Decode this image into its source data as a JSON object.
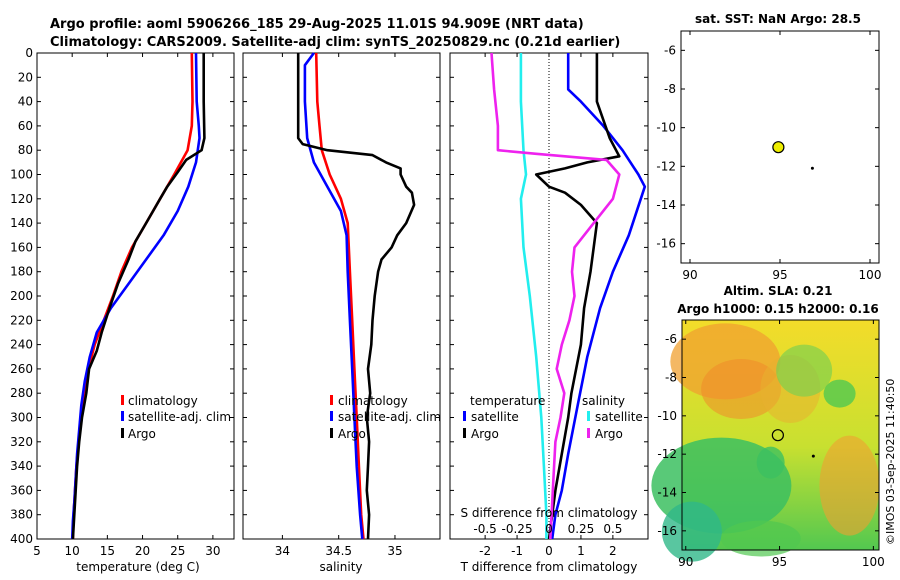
{
  "header": {
    "title_line1": "Argo profile: aoml 5906266_185 29-Aug-2025 11.01S 94.909E (NRT data)",
    "title_line2": "Climatology: CARS2009. Satellite-adj clim: synTS_20250829.nc (0.21d earlier)"
  },
  "footer": {
    "stamp": "©IMOS 03-Sep-2025 11:40:50"
  },
  "colors": {
    "clim": "#ff0000",
    "sat": "#0000ff",
    "argo": "#000000",
    "cyan": "#22eeee",
    "magenta": "#ee22ee",
    "point": "#eeee00"
  },
  "chart_data": [
    {
      "name": "temperature",
      "type": "line",
      "xlabel": "temperature (deg C)",
      "xlim": [
        5,
        33
      ],
      "xticks": [
        "5",
        "10",
        "15",
        "20",
        "25",
        "30"
      ],
      "ylim": [
        0,
        400
      ],
      "yticks": [
        "0",
        "20",
        "40",
        "60",
        "80",
        "100",
        "120",
        "140",
        "160",
        "180",
        "200",
        "220",
        "240",
        "260",
        "280",
        "300",
        "320",
        "340",
        "360",
        "380",
        "400"
      ],
      "series": [
        {
          "name": "climatology",
          "color": "#ff0000",
          "points": [
            [
              27.0,
              0
            ],
            [
              27.1,
              40
            ],
            [
              27.0,
              60
            ],
            [
              26.4,
              80
            ],
            [
              24.5,
              100
            ],
            [
              22.5,
              120
            ],
            [
              20.5,
              140
            ],
            [
              18.5,
              160
            ],
            [
              17.0,
              180
            ],
            [
              15.8,
              200
            ],
            [
              14.5,
              220
            ],
            [
              13.2,
              240
            ],
            [
              12.3,
              260
            ],
            [
              11.7,
              280
            ],
            [
              11.2,
              300
            ],
            [
              10.9,
              320
            ],
            [
              10.6,
              340
            ],
            [
              10.4,
              360
            ],
            [
              10.2,
              380
            ],
            [
              10.1,
              400
            ]
          ]
        },
        {
          "name": "satellite-adj. clim",
          "color": "#0000ff",
          "points": [
            [
              27.6,
              0
            ],
            [
              27.7,
              40
            ],
            [
              28.0,
              60
            ],
            [
              28.1,
              70
            ],
            [
              27.6,
              90
            ],
            [
              26.5,
              110
            ],
            [
              25.0,
              130
            ],
            [
              23.0,
              150
            ],
            [
              20.5,
              170
            ],
            [
              18.0,
              190
            ],
            [
              15.5,
              210
            ],
            [
              13.5,
              230
            ],
            [
              12.5,
              250
            ],
            [
              11.8,
              270
            ],
            [
              11.3,
              290
            ],
            [
              11.0,
              310
            ],
            [
              10.7,
              330
            ],
            [
              10.5,
              350
            ],
            [
              10.3,
              370
            ],
            [
              10.1,
              385
            ],
            [
              10.0,
              400
            ]
          ]
        },
        {
          "name": "Argo",
          "color": "#000000",
          "points": [
            [
              28.7,
              0
            ],
            [
              28.7,
              40
            ],
            [
              28.8,
              70
            ],
            [
              28.4,
              80
            ],
            [
              26.2,
              88
            ],
            [
              25.0,
              98
            ],
            [
              23.5,
              110
            ],
            [
              22.5,
              120
            ],
            [
              21.5,
              130
            ],
            [
              20.5,
              140
            ],
            [
              19.0,
              155
            ],
            [
              18.0,
              170
            ],
            [
              16.5,
              190
            ],
            [
              15.3,
              210
            ],
            [
              14.2,
              230
            ],
            [
              13.5,
              245
            ],
            [
              12.4,
              260
            ],
            [
              12.0,
              280
            ],
            [
              11.4,
              300
            ],
            [
              11.0,
              320
            ],
            [
              10.7,
              340
            ],
            [
              10.5,
              360
            ],
            [
              10.3,
              380
            ],
            [
              10.1,
              400
            ]
          ]
        }
      ],
      "legend": [
        "climatology",
        "satellite-adj. clim",
        "Argo"
      ]
    },
    {
      "name": "salinity",
      "type": "line",
      "xlabel": "salinity",
      "xlim": [
        33.65,
        35.4
      ],
      "xticks": [
        "34",
        "34.5",
        "35"
      ],
      "ylim": [
        0,
        400
      ],
      "series": [
        {
          "name": "climatology",
          "color": "#ff0000",
          "points": [
            [
              34.3,
              0
            ],
            [
              34.31,
              40
            ],
            [
              34.33,
              60
            ],
            [
              34.35,
              80
            ],
            [
              34.42,
              100
            ],
            [
              34.52,
              120
            ],
            [
              34.58,
              140
            ],
            [
              34.6,
              180
            ],
            [
              34.62,
              220
            ],
            [
              34.64,
              260
            ],
            [
              34.66,
              300
            ],
            [
              34.68,
              340
            ],
            [
              34.7,
              380
            ],
            [
              34.72,
              400
            ]
          ]
        },
        {
          "name": "satellite-adj. clim",
          "color": "#0000ff",
          "points": [
            [
              34.28,
              0
            ],
            [
              34.2,
              10
            ],
            [
              34.2,
              40
            ],
            [
              34.22,
              70
            ],
            [
              34.28,
              90
            ],
            [
              34.4,
              110
            ],
            [
              34.52,
              130
            ],
            [
              34.57,
              150
            ],
            [
              34.58,
              180
            ],
            [
              34.6,
              220
            ],
            [
              34.62,
              260
            ],
            [
              34.64,
              300
            ],
            [
              34.66,
              340
            ],
            [
              34.69,
              380
            ],
            [
              34.71,
              400
            ]
          ]
        },
        {
          "name": "Argo",
          "color": "#000000",
          "points": [
            [
              34.14,
              0
            ],
            [
              34.14,
              70
            ],
            [
              34.18,
              75
            ],
            [
              34.4,
              80
            ],
            [
              34.8,
              84
            ],
            [
              34.92,
              90
            ],
            [
              35.05,
              95
            ],
            [
              35.05,
              100
            ],
            [
              35.1,
              110
            ],
            [
              35.15,
              115
            ],
            [
              35.17,
              125
            ],
            [
              35.1,
              140
            ],
            [
              35.02,
              150
            ],
            [
              34.97,
              160
            ],
            [
              34.88,
              170
            ],
            [
              34.85,
              180
            ],
            [
              34.82,
              200
            ],
            [
              34.8,
              220
            ],
            [
              34.79,
              240
            ],
            [
              34.76,
              260
            ],
            [
              34.78,
              280
            ],
            [
              34.75,
              300
            ],
            [
              34.77,
              320
            ],
            [
              34.76,
              340
            ],
            [
              34.75,
              360
            ],
            [
              34.77,
              380
            ],
            [
              34.76,
              400
            ]
          ]
        }
      ],
      "legend": [
        "climatology",
        "satellite-adj. clim",
        "Argo"
      ]
    },
    {
      "name": "differences",
      "type": "line",
      "xlabel": "T difference from climatology",
      "top_label": "S difference from climatology",
      "xlim": [
        -3.1,
        3.1
      ],
      "xticks": [
        "-2",
        "-1",
        "0",
        "1",
        "2"
      ],
      "top_ticks": [
        "-0.5",
        "-0.25",
        "0",
        "0.25",
        "0.5"
      ],
      "ylim": [
        0,
        400
      ],
      "series": [
        {
          "name": "temperature satellite",
          "color": "#0000ff",
          "points": [
            [
              0.6,
              0
            ],
            [
              0.6,
              30
            ],
            [
              1.0,
              40
            ],
            [
              1.7,
              60
            ],
            [
              2.3,
              80
            ],
            [
              2.8,
              100
            ],
            [
              3.0,
              110
            ],
            [
              2.5,
              150
            ],
            [
              2.0,
              180
            ],
            [
              1.6,
              210
            ],
            [
              1.2,
              250
            ],
            [
              0.9,
              290
            ],
            [
              0.6,
              330
            ],
            [
              0.4,
              360
            ],
            [
              0.2,
              380
            ],
            [
              0.1,
              400
            ]
          ]
        },
        {
          "name": "temperature Argo",
          "color": "#000000",
          "points": [
            [
              1.5,
              0
            ],
            [
              1.5,
              40
            ],
            [
              1.9,
              70
            ],
            [
              2.2,
              85
            ],
            [
              1.2,
              90
            ],
            [
              0.5,
              95
            ],
            [
              -0.4,
              100
            ],
            [
              0.0,
              110
            ],
            [
              0.5,
              115
            ],
            [
              1.0,
              125
            ],
            [
              1.5,
              140
            ],
            [
              1.4,
              160
            ],
            [
              1.3,
              180
            ],
            [
              1.1,
              210
            ],
            [
              1.0,
              240
            ],
            [
              0.7,
              280
            ],
            [
              0.6,
              300
            ],
            [
              0.4,
              330
            ],
            [
              0.2,
              360
            ],
            [
              0.1,
              380
            ],
            [
              0.0,
              400
            ]
          ]
        },
        {
          "name": "salinity satellite",
          "color": "#22eeee",
          "points": [
            [
              -0.22,
              0
            ],
            [
              -0.22,
              40
            ],
            [
              -0.2,
              80
            ],
            [
              -0.18,
              100
            ],
            [
              -0.22,
              120
            ],
            [
              -0.2,
              160
            ],
            [
              -0.15,
              200
            ],
            [
              -0.1,
              250
            ],
            [
              -0.06,
              300
            ],
            [
              -0.04,
              340
            ],
            [
              -0.02,
              380
            ],
            [
              -0.02,
              400
            ]
          ]
        },
        {
          "name": "salinity Argo",
          "color": "#ee22ee",
          "points": [
            [
              -0.45,
              0
            ],
            [
              -0.43,
              30
            ],
            [
              -0.4,
              60
            ],
            [
              -0.4,
              80
            ],
            [
              -0.1,
              83
            ],
            [
              0.45,
              88
            ],
            [
              0.55,
              100
            ],
            [
              0.5,
              120
            ],
            [
              0.35,
              140
            ],
            [
              0.2,
              160
            ],
            [
              0.18,
              180
            ],
            [
              0.2,
              200
            ],
            [
              0.16,
              220
            ],
            [
              0.1,
              240
            ],
            [
              0.06,
              260
            ],
            [
              0.12,
              280
            ],
            [
              0.09,
              300
            ],
            [
              0.05,
              320
            ],
            [
              0.04,
              340
            ],
            [
              0.03,
              360
            ],
            [
              0.02,
              380
            ],
            [
              0.01,
              400
            ]
          ]
        }
      ],
      "legend": {
        "temperature_title": "temperature",
        "salinity_title": "salinity",
        "satellite": "satellite",
        "argo": "Argo"
      }
    },
    {
      "name": "sst_map",
      "type": "scatter",
      "title": "sat. SST: NaN Argo: 28.5",
      "xlim": [
        89.5,
        100.5
      ],
      "ylim": [
        -17,
        -5
      ],
      "xticks": [
        "90",
        "95",
        "100"
      ],
      "yticks": [
        "-6",
        "-8",
        "-10",
        "-12",
        "-14",
        "-16"
      ],
      "argo_position": [
        94.91,
        -11.01
      ],
      "small_marker": [
        96.8,
        -12.1
      ]
    },
    {
      "name": "sla_map",
      "type": "heatmap",
      "title_line1": "Altim. SLA: 0.21",
      "title_line2": "Argo h1000: 0.15 h2000: 0.16",
      "xlim": [
        89.8,
        100.3
      ],
      "ylim": [
        -17,
        -5
      ],
      "xticks": [
        "90",
        "95",
        "100"
      ],
      "yticks": [
        "-6",
        "-8",
        "-10",
        "-12",
        "-14",
        "-16"
      ],
      "argo_position": [
        94.91,
        -11.01
      ],
      "small_marker": [
        96.8,
        -12.1
      ]
    }
  ]
}
